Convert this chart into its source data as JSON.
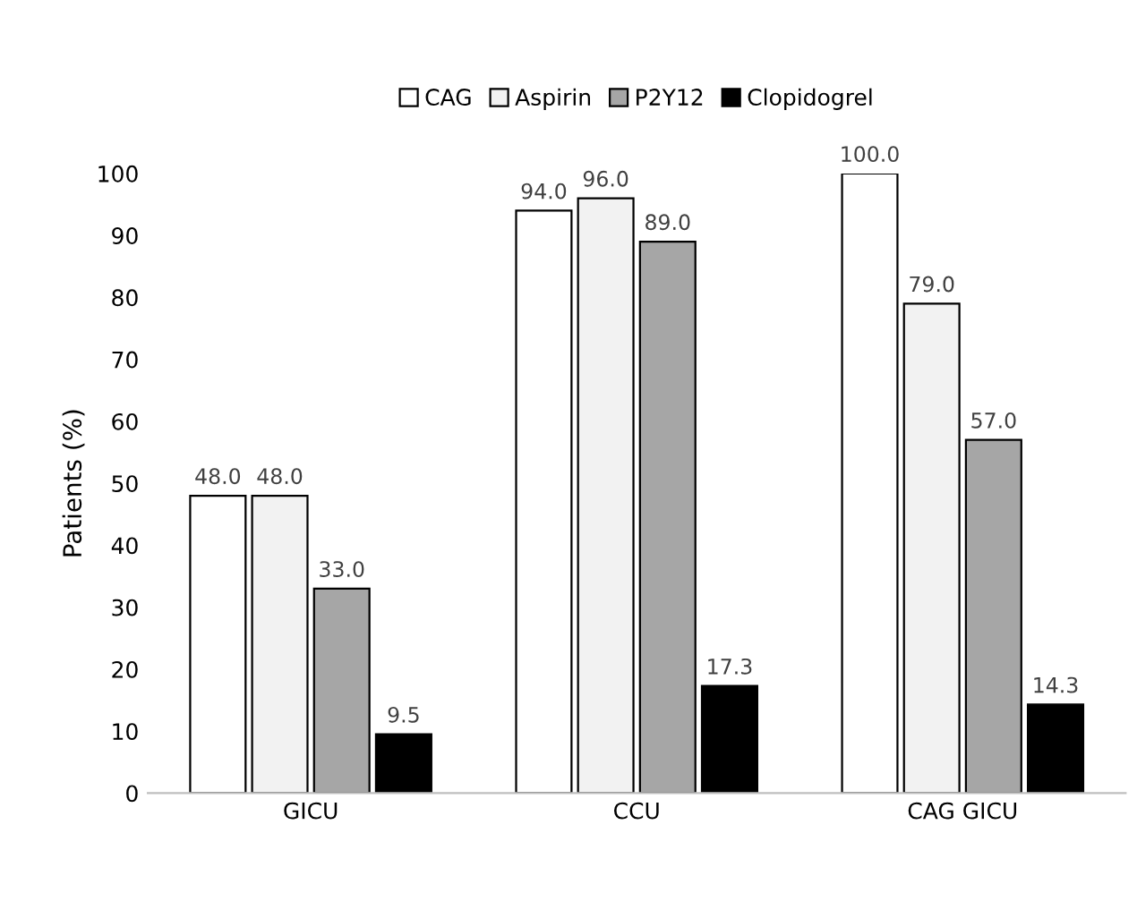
{
  "chart_data": {
    "type": "bar",
    "ylabel": "Patients (%)",
    "categories": [
      "GICU",
      "CCU",
      "CAG GICU"
    ],
    "series": [
      {
        "name": "CAG",
        "color": "#ffffff",
        "values": [
          48.0,
          94.0,
          100.0
        ]
      },
      {
        "name": "Aspirin",
        "color": "#f2f2f2",
        "values": [
          48.0,
          96.0,
          79.0
        ]
      },
      {
        "name": "P2Y12",
        "color": "#a6a6a6",
        "values": [
          33.0,
          89.0,
          57.0
        ]
      },
      {
        "name": "Clopidogrel",
        "color": "#000000",
        "values": [
          9.5,
          17.3,
          14.3
        ]
      }
    ],
    "ylim": [
      0,
      100
    ],
    "yticks": [
      0,
      10,
      20,
      30,
      40,
      50,
      60,
      70,
      80,
      90,
      100
    ],
    "value_labels": [
      [
        "48.0",
        "94.0",
        "100.0"
      ],
      [
        "48.0",
        "96.0",
        "79.0"
      ],
      [
        "33.0",
        "89.0",
        "57.0"
      ],
      [
        "9.5",
        "17.3",
        "14.3"
      ]
    ],
    "legend": "top",
    "grid": false
  }
}
